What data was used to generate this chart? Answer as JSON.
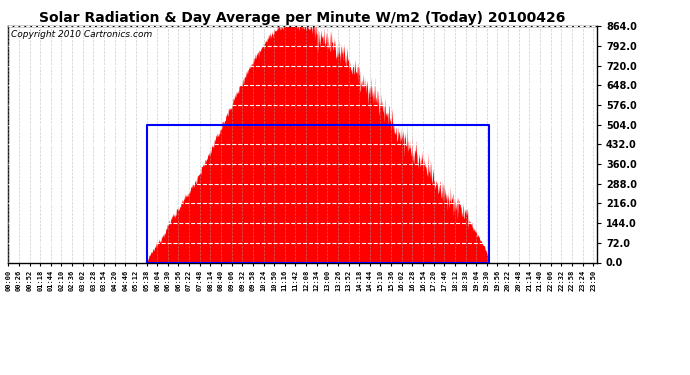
{
  "title": "Solar Radiation & Day Average per Minute W/m2 (Today) 20100426",
  "copyright": "Copyright 2010 Cartronics.com",
  "title_fontsize": 10,
  "copyright_fontsize": 6.5,
  "bg_color": "#ffffff",
  "plot_bg_color": "#ffffff",
  "fill_color": "#ff0000",
  "line_color": "#0000ff",
  "grid_h_color": "#ffffff",
  "grid_v_color": "#aaaaaa",
  "ymax": 864.0,
  "ymin": 0.0,
  "ytick_step": 72.0,
  "day_avg": 504.0,
  "sunrise_min": 340,
  "sunset_min": 1175,
  "total_minutes": 1440,
  "peak_min": 690,
  "peak_val": 870
}
